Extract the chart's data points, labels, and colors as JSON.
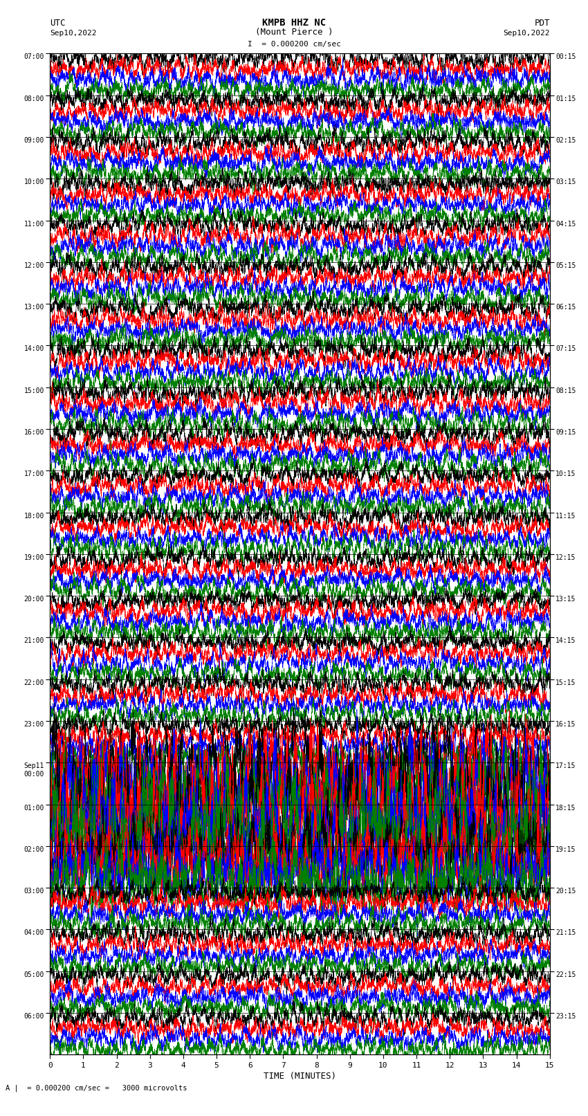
{
  "title_line1": "KMPB HHZ NC",
  "title_line2": "(Mount Pierce )",
  "scale_text": "= 0.000200 cm/sec",
  "bottom_text": "= 0.000200 cm/sec =   3000 microvolts",
  "left_header": "UTC",
  "left_date": "Sep10,2022",
  "right_header": "PDT",
  "right_date": "Sep10,2022",
  "xlabel": "TIME (MINUTES)",
  "left_times": [
    "07:00",
    "08:00",
    "09:00",
    "10:00",
    "11:00",
    "12:00",
    "13:00",
    "14:00",
    "15:00",
    "16:00",
    "17:00",
    "18:00",
    "19:00",
    "20:00",
    "21:00",
    "22:00",
    "23:00",
    "Sep11\n00:00",
    "01:00",
    "02:00",
    "03:00",
    "04:00",
    "05:00",
    "06:00"
  ],
  "right_times": [
    "00:15",
    "01:15",
    "02:15",
    "03:15",
    "04:15",
    "05:15",
    "06:15",
    "07:15",
    "08:15",
    "09:15",
    "10:15",
    "11:15",
    "12:15",
    "13:15",
    "14:15",
    "15:15",
    "16:15",
    "17:15",
    "18:15",
    "19:15",
    "20:15",
    "21:15",
    "22:15",
    "23:15"
  ],
  "n_rows": 24,
  "n_traces_per_row": 4,
  "colors": [
    "black",
    "red",
    "blue",
    "green"
  ],
  "time_minutes": 15,
  "bg_color": "white",
  "trace_amplitude": 0.55,
  "noise_seed": 42,
  "sep11_row": 17,
  "high_amp_rows": [
    17,
    18,
    19
  ],
  "high_amp_mults": [
    4.0,
    5.0,
    3.0
  ]
}
